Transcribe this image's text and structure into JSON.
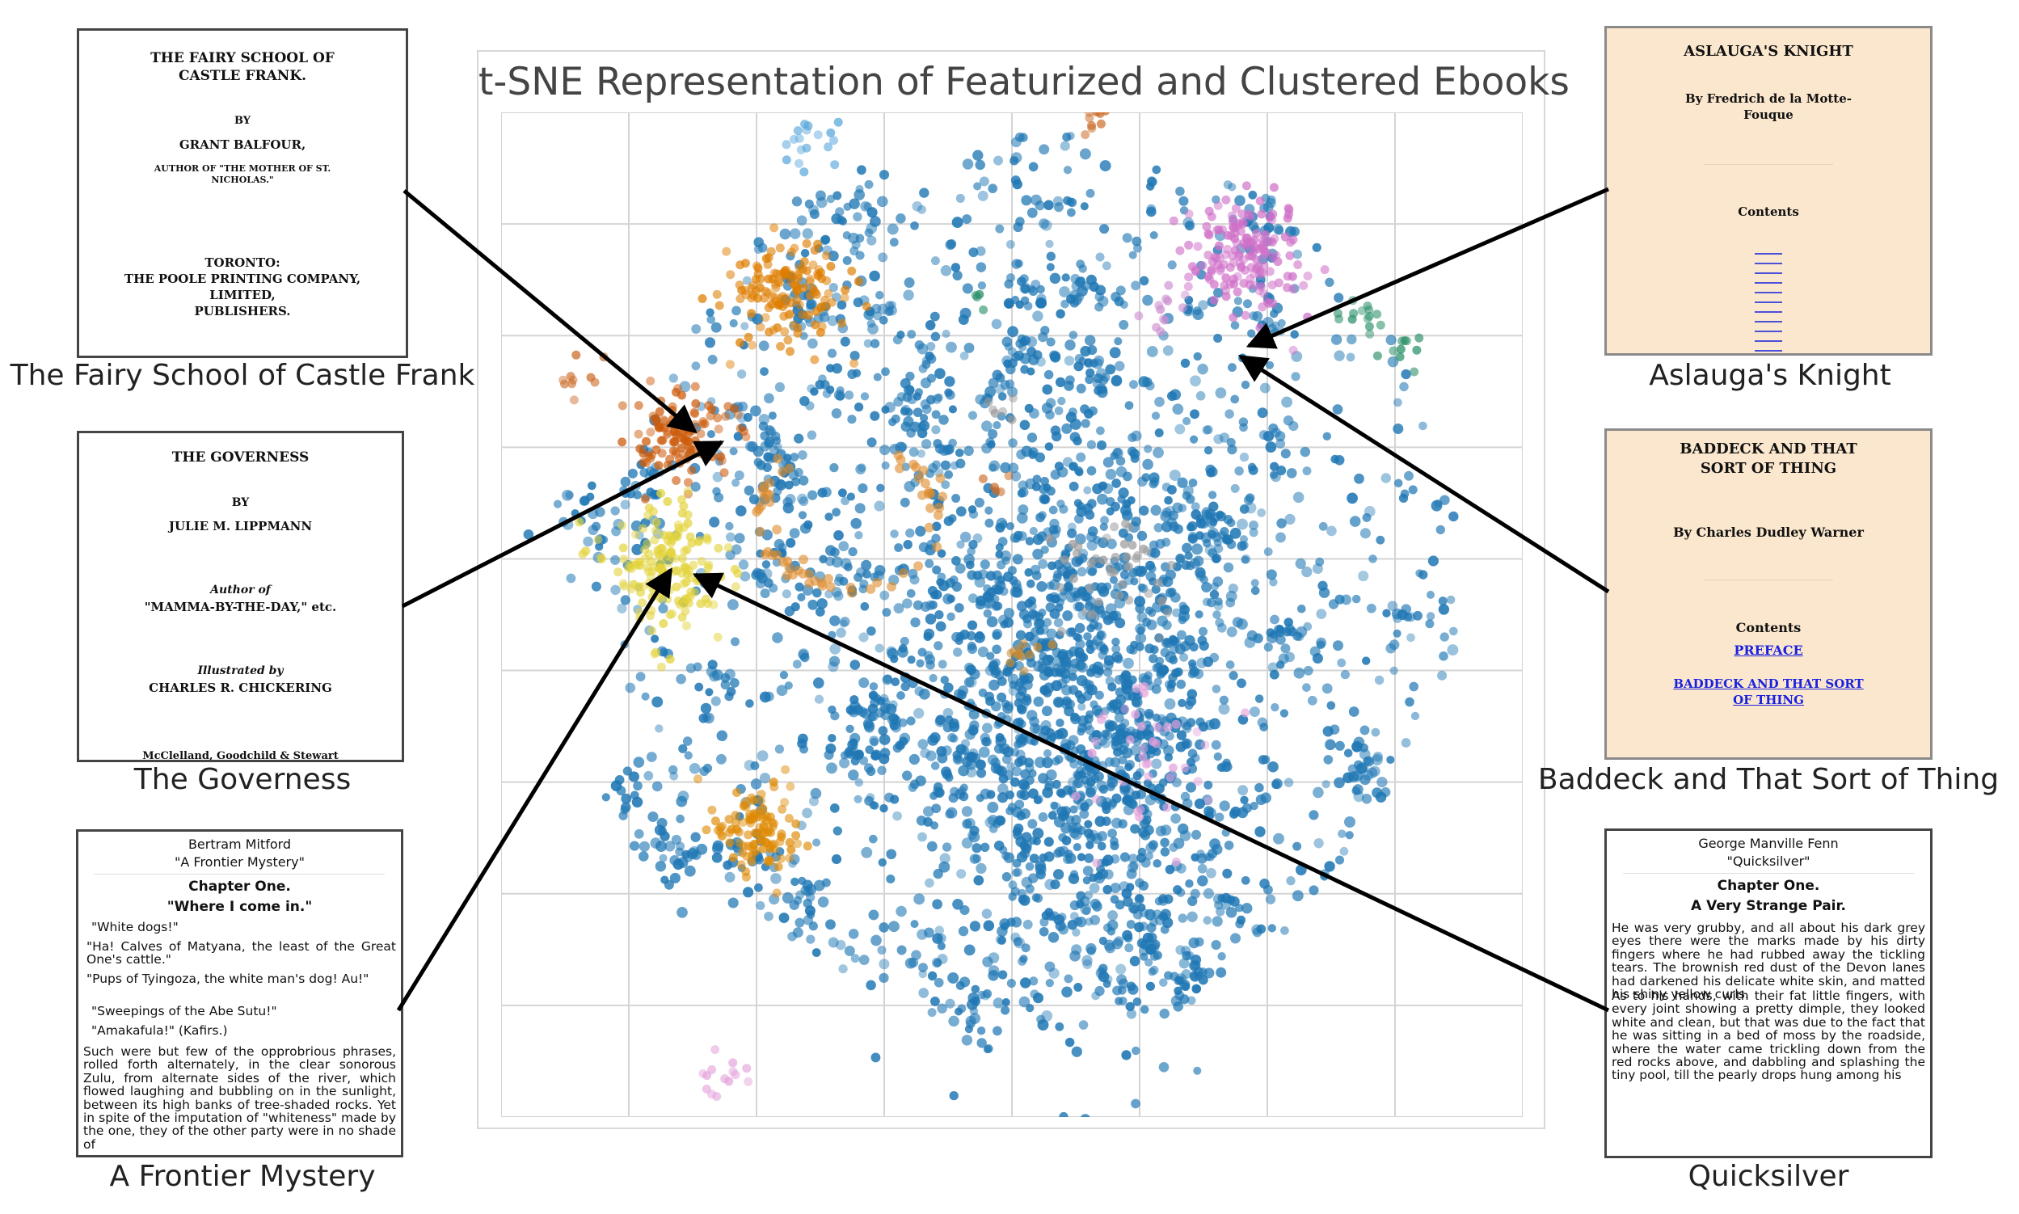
{
  "chart_data": {
    "type": "scatter",
    "title": "t-SNE Representation of Featurized and Clustered Ebooks",
    "xlabel": "",
    "ylabel": "",
    "grid": true,
    "legend": "none",
    "xlim": [
      -50,
      50
    ],
    "ylim": [
      -50,
      50
    ],
    "main_cluster_color": "#1f77b4",
    "clusters": [
      {
        "color": "#de7d00",
        "center": [
          -22,
          32
        ],
        "spread": 2.8,
        "count": 140
      },
      {
        "color": "#cc5a0a",
        "center": [
          -32,
          18
        ],
        "spread": 2.2,
        "count": 110
      },
      {
        "color": "#e3d33a",
        "center": [
          -34,
          5
        ],
        "spread": 3.0,
        "count": 160
      },
      {
        "color": "#de8a05",
        "center": [
          -25,
          -21
        ],
        "spread": 2.3,
        "count": 110
      },
      {
        "color": "#cf6fc8",
        "center": [
          23,
          36
        ],
        "spread": 3.0,
        "count": 160
      },
      {
        "color": "#cc6d2a",
        "center": [
          8,
          50
        ],
        "spread": 0.9,
        "count": 12
      },
      {
        "color": "#c58c6a",
        "center": [
          -4,
          58
        ],
        "spread": 1.6,
        "count": 22
      },
      {
        "color": "#5aa7dc",
        "center": [
          -20,
          47
        ],
        "spread": 1.1,
        "count": 18
      },
      {
        "color": "#5aa7dc",
        "center": [
          -16,
          62
        ],
        "spread": 0.6,
        "count": 5
      },
      {
        "color": "#2a9068",
        "center": [
          34,
          30
        ],
        "spread": 1.2,
        "count": 14
      },
      {
        "color": "#2a9068",
        "center": [
          38,
          26
        ],
        "spread": 1.0,
        "count": 10
      },
      {
        "color": "#2a9068",
        "center": [
          -3,
          31
        ],
        "spread": 0.5,
        "count": 4
      },
      {
        "color": "#cc8fd0",
        "center": [
          15,
          30
        ],
        "spread": 1.2,
        "count": 12
      },
      {
        "color": "#e4a2dc",
        "center": [
          13,
          -14
        ],
        "spread": 3.5,
        "count": 40
      },
      {
        "color": "#e4a2dc",
        "center": [
          -28,
          -46
        ],
        "spread": 1.4,
        "count": 14
      },
      {
        "color": "#9a9a9a",
        "center": [
          10,
          4
        ],
        "spread": 3.0,
        "count": 40
      },
      {
        "color": "#9a9a9a",
        "center": [
          -1,
          20
        ],
        "spread": 0.8,
        "count": 6
      },
      {
        "color": "#c98a30",
        "center": [
          1,
          -4
        ],
        "spread": 1.0,
        "count": 12
      },
      {
        "color": "#cc6d2a",
        "center": [
          -1,
          13
        ],
        "spread": 0.6,
        "count": 5
      },
      {
        "color": "#e3d33a",
        "center": [
          -35,
          -4
        ],
        "spread": 0.6,
        "count": 4
      },
      {
        "color": "#cc6d2a",
        "center": [
          -43,
          23
        ],
        "spread": 2.0,
        "count": 10
      }
    ],
    "ring_cluster": {
      "color": "#de8a2a",
      "center": [
        -16,
        10
      ],
      "radius": 8.5,
      "count": 60
    }
  },
  "books": [
    {
      "caption": "The Fairy School of Castle Frank",
      "lines": [
        "THE FAIRY SCHOOL OF",
        "CASTLE FRANK.",
        "BY",
        "GRANT BALFOUR,",
        "AUTHOR OF \"THE MOTHER OF ST.",
        "NICHOLAS.\"",
        "TORONTO:",
        "THE POOLE PRINTING COMPANY,",
        "LIMITED,",
        "PUBLISHERS."
      ]
    },
    {
      "caption": "The Governess",
      "lines": [
        "THE GOVERNESS",
        "BY",
        "JULIE M. LIPPMANN",
        "Author of",
        "\"MAMMA-BY-THE-DAY,\" etc.",
        "Illustrated by",
        "CHARLES R. CHICKERING",
        "McClelland, Goodchild & Stewart"
      ]
    },
    {
      "caption": "A Frontier Mystery",
      "author": "Bertram Mitford",
      "title": "\"A Frontier Mystery\"",
      "chapter": "Chapter One.",
      "chapter_title": "\"Where I come in.\"",
      "paras": [
        "\"White dogs!\"",
        "\"Ha! Calves of Matyana, the least of the Great One's cattle.\"",
        "\"Pups of Tyingoza, the white man's dog! Au!\"",
        "\"Sweepings of the Abe Sutu!\"",
        "\"Amakafula!\" (Kafirs.)",
        "Such were but few of the opprobrious phrases, rolled forth alternately, in the clear sonorous Zulu, from alternate sides of the river, which flowed laughing and bubbling on in the sunlight, between its high banks of tree-shaded rocks. Yet in spite of the imputation of \"whiteness\" made by the one, they of the other party were in no shade of"
      ]
    },
    {
      "caption": "Aslauga's Knight",
      "lines": [
        "ASLAUGA'S KNIGHT",
        "By Fredrich de la Motte-",
        "Fouque",
        "Contents"
      ]
    },
    {
      "caption": "Baddeck and That Sort of Thing",
      "lines": [
        "BADDECK AND THAT",
        "SORT OF THING",
        "By Charles Dudley Warner",
        "Contents",
        "PREFACE",
        "BADDECK AND THAT SORT",
        "OF THING"
      ]
    },
    {
      "caption": "Quicksilver",
      "author": "George Manville Fenn",
      "title": "\"Quicksilver\"",
      "chapter": "Chapter One.",
      "chapter_title": "A Very Strange Pair.",
      "paras": [
        "He was very grubby, and all about his dark grey eyes there were the marks made by his dirty fingers where he had rubbed away the tickling tears. The brownish red dust of the Devon lanes had darkened his delicate white skin, and matted his shiny yellow curls.",
        "As to his hands, with their fat little fingers, with every joint showing a pretty dimple, they looked white and clean, but that was due to the fact that he was sitting in a bed of moss by the roadside, where the water came trickling down from the red rocks above, and dabbling and splashing the tiny pool, till the pearly drops hung among his"
      ]
    }
  ]
}
